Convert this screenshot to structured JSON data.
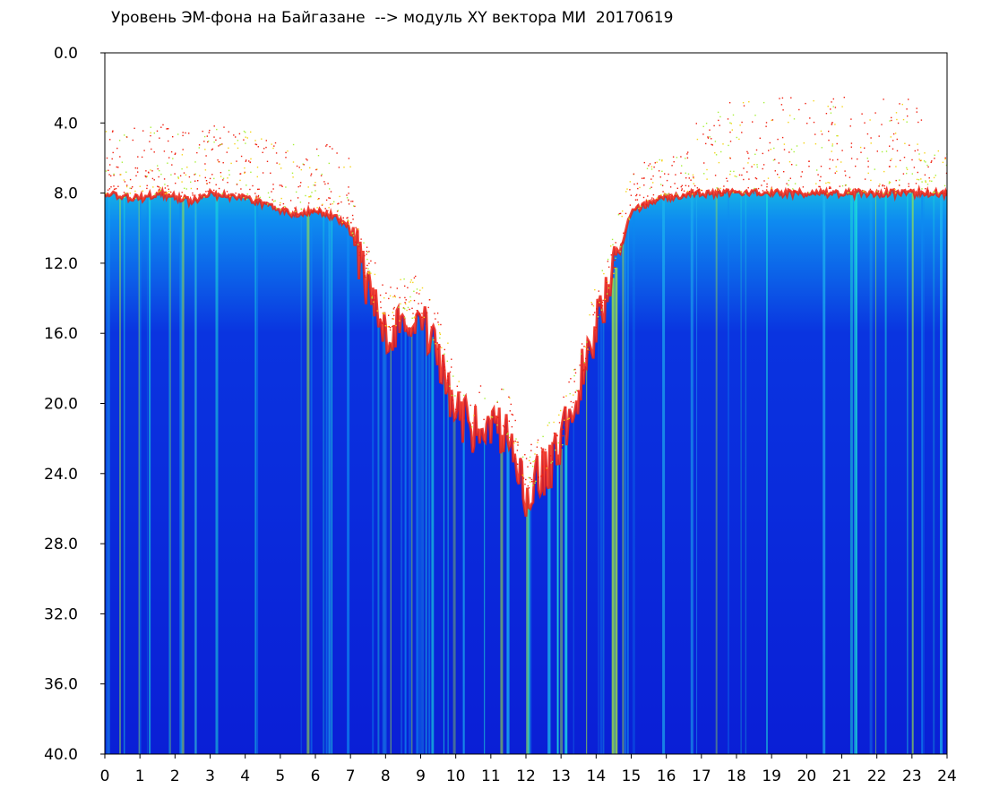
{
  "chart_data": {
    "type": "heatmap",
    "title": "Уровень ЭМ-фона на Байгазане  --> модуль XY вектора МИ  20170619",
    "xlabel": "",
    "ylabel": "",
    "xlim": [
      0,
      24
    ],
    "ylim": [
      0,
      40
    ],
    "y_inverted": true,
    "x_ticks": [
      "0",
      "1",
      "2",
      "3",
      "4",
      "5",
      "6",
      "7",
      "8",
      "9",
      "10",
      "11",
      "12",
      "13",
      "14",
      "15",
      "16",
      "17",
      "18",
      "19",
      "20",
      "21",
      "22",
      "23",
      "24"
    ],
    "y_ticks": [
      "0.0",
      "4.0",
      "8.0",
      "12.0",
      "16.0",
      "20.0",
      "24.0",
      "28.0",
      "32.0",
      "36.0",
      "40.0"
    ],
    "grid": false,
    "legend": "none",
    "colors": {
      "low": "#0a1fd6",
      "mid_low": "#0e8bf0",
      "mid": "#1ee6d8",
      "mid_high": "#a8f03a",
      "high": "#f5f51a",
      "top": "#f02010",
      "background": "#ffffff"
    },
    "boundary_x": [
      0,
      0.5,
      1,
      1.5,
      2,
      2.5,
      3,
      3.5,
      4,
      4.5,
      5,
      5.5,
      6,
      6.5,
      7,
      7.5,
      8,
      8.5,
      9,
      9.5,
      10,
      10.5,
      11,
      11.5,
      12,
      12.5,
      13,
      13.5,
      14,
      14.5,
      15,
      16,
      17,
      18,
      19,
      20,
      21,
      22,
      23,
      24
    ],
    "boundary_y": [
      8.0,
      8.2,
      8.3,
      8.0,
      8.2,
      8.5,
      8.0,
      8.2,
      8.3,
      8.6,
      9.0,
      9.2,
      9.0,
      9.3,
      10.0,
      13.5,
      16.0,
      15.2,
      15.0,
      17.0,
      20.5,
      21.5,
      20.8,
      22.0,
      25.0,
      24.0,
      22.5,
      19.0,
      15.5,
      12.5,
      9.0,
      8.2,
      8.0,
      8.0,
      8.0,
      8.0,
      8.0,
      8.0,
      8.0,
      8.0
    ]
  }
}
